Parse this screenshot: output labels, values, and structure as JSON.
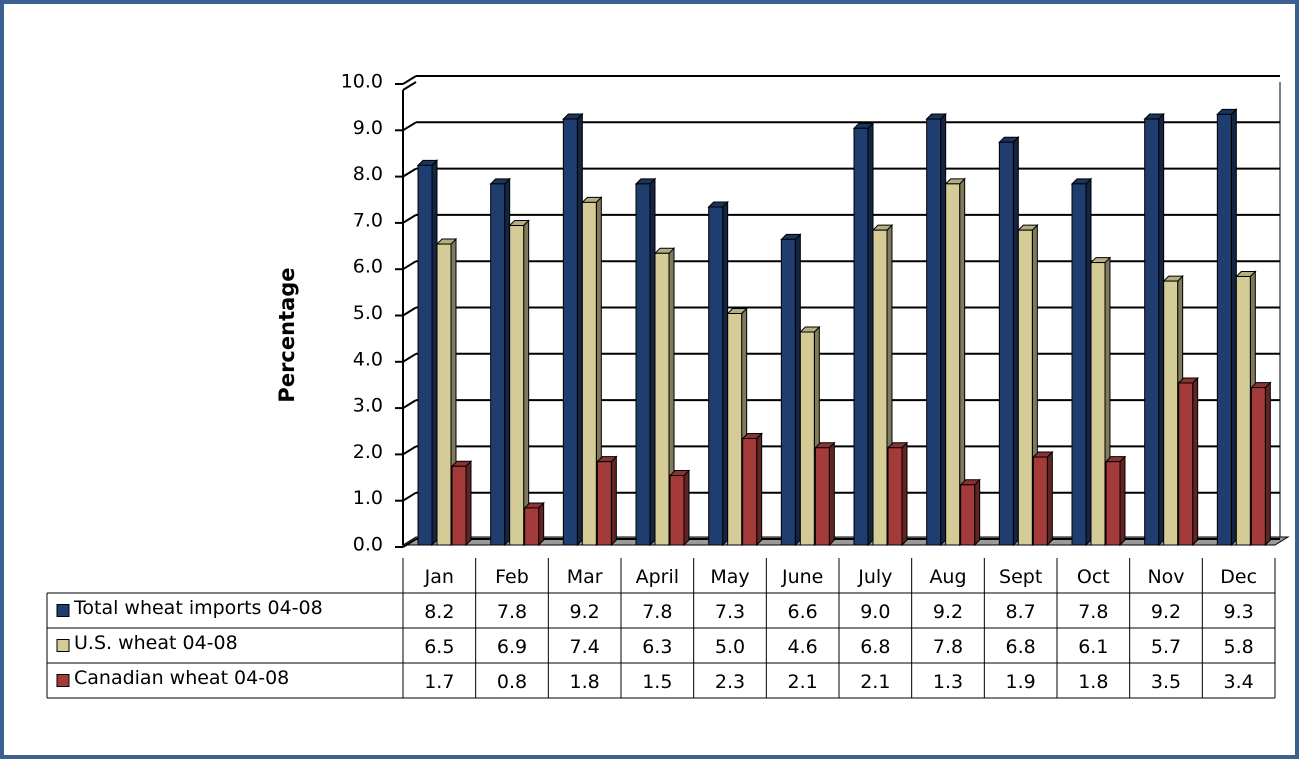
{
  "chart_data": {
    "type": "bar3d",
    "y_label": "Percentage",
    "categories": [
      "Jan",
      "Feb",
      "Mar",
      "April",
      "May",
      "June",
      "July",
      "Aug",
      "Sept",
      "Oct",
      "Nov",
      "Dec"
    ],
    "series": [
      {
        "name": "Total wheat imports 04-08",
        "color": "#1f3d6e",
        "values": [
          8.2,
          7.8,
          9.2,
          7.8,
          7.3,
          6.6,
          9.0,
          9.2,
          8.7,
          7.8,
          9.2,
          9.3
        ],
        "value_labels": [
          "8.2",
          "7.8",
          "9.2",
          "7.8",
          "7.3",
          "6.6",
          "9.0",
          "9.2",
          "8.7",
          "7.8",
          "9.2",
          "9.3"
        ]
      },
      {
        "name": "U.S. wheat 04-08",
        "color": "#d4cb97",
        "values": [
          6.5,
          6.9,
          7.4,
          6.3,
          5.0,
          4.6,
          6.8,
          7.8,
          6.8,
          6.1,
          5.7,
          5.8
        ],
        "value_labels": [
          "6.5",
          "6.9",
          "7.4",
          "6.3",
          "5.0",
          "4.6",
          "6.8",
          "7.8",
          "6.8",
          "6.1",
          "5.7",
          "5.8"
        ]
      },
      {
        "name": "Canadian wheat 04-08",
        "color": "#a33b3b",
        "values": [
          1.7,
          0.8,
          1.8,
          1.5,
          2.3,
          2.1,
          2.1,
          1.3,
          1.9,
          1.8,
          3.5,
          3.4
        ],
        "value_labels": [
          "1.7",
          "0.8",
          "1.8",
          "1.5",
          "2.3",
          "2.1",
          "2.1",
          "1.3",
          "1.9",
          "1.8",
          "3.5",
          "3.4"
        ]
      }
    ],
    "ylim": [
      0,
      10
    ],
    "yticks": [
      {
        "value": 0,
        "label": "0.0"
      },
      {
        "value": 1,
        "label": "1.0"
      },
      {
        "value": 2,
        "label": "2.0"
      },
      {
        "value": 3,
        "label": "3.0"
      },
      {
        "value": 4,
        "label": "4.0"
      },
      {
        "value": 5,
        "label": "5.0"
      },
      {
        "value": 6,
        "label": "6.0"
      },
      {
        "value": 7,
        "label": "7.0"
      },
      {
        "value": 8,
        "label": "8.0"
      },
      {
        "value": 9,
        "label": "9.0"
      },
      {
        "value": 10,
        "label": "10.0"
      }
    ],
    "grid": true
  }
}
